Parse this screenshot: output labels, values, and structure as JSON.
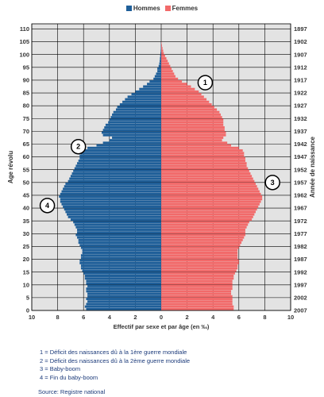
{
  "chart_data": {
    "type": "bar",
    "orientation": "horizontal-pyramid",
    "legend": {
      "position": "top-center",
      "entries": [
        "Hommes",
        "Femmes"
      ]
    },
    "colors": {
      "hommes": "#1f5f99",
      "femmes": "#f26a6a",
      "plot_bg": "#e3e3e3",
      "grid": "#000000"
    },
    "xlabel": "Effectif par sexe et par âge (en ‰)",
    "ylabel_left": "Age révolu",
    "ylabel_right": "Année de naissance",
    "xlim": [
      -10,
      10
    ],
    "x_ticks": [
      "10",
      "8",
      "6",
      "4",
      "2",
      "0",
      "2",
      "4",
      "6",
      "8",
      "10"
    ],
    "ylim": [
      0,
      112
    ],
    "age_ticks": [
      "0",
      "5",
      "10",
      "15",
      "20",
      "25",
      "30",
      "35",
      "40",
      "45",
      "50",
      "55",
      "60",
      "65",
      "70",
      "75",
      "80",
      "85",
      "90",
      "95",
      "100",
      "105",
      "110"
    ],
    "year_ticks": [
      "2007",
      "2002",
      "1997",
      "1992",
      "1987",
      "1982",
      "1977",
      "1972",
      "1967",
      "1962",
      "1957",
      "1952",
      "1947",
      "1942",
      "1937",
      "1932",
      "1927",
      "1922",
      "1917",
      "1912",
      "1907",
      "1902",
      "1897"
    ],
    "grid": true,
    "ages": [
      0,
      1,
      2,
      3,
      4,
      5,
      6,
      7,
      8,
      9,
      10,
      11,
      12,
      13,
      14,
      15,
      16,
      17,
      18,
      19,
      20,
      21,
      22,
      23,
      24,
      25,
      26,
      27,
      28,
      29,
      30,
      31,
      32,
      33,
      34,
      35,
      36,
      37,
      38,
      39,
      40,
      41,
      42,
      43,
      44,
      45,
      46,
      47,
      48,
      49,
      50,
      51,
      52,
      53,
      54,
      55,
      56,
      57,
      58,
      59,
      60,
      61,
      62,
      63,
      64,
      65,
      66,
      67,
      68,
      69,
      70,
      71,
      72,
      73,
      74,
      75,
      76,
      77,
      78,
      79,
      80,
      81,
      82,
      83,
      84,
      85,
      86,
      87,
      88,
      89,
      90,
      91,
      92,
      93,
      94,
      95,
      96,
      97,
      98,
      99,
      100,
      101,
      102,
      103,
      104,
      105
    ],
    "series": [
      {
        "name": "Hommes",
        "values": [
          5.8,
          5.9,
          5.8,
          5.7,
          5.8,
          5.7,
          5.7,
          5.8,
          5.8,
          5.7,
          5.8,
          5.8,
          5.9,
          5.9,
          6.0,
          6.1,
          6.2,
          6.2,
          6.3,
          6.3,
          6.2,
          6.2,
          6.1,
          6.1,
          6.2,
          6.3,
          6.4,
          6.4,
          6.5,
          6.6,
          6.5,
          6.5,
          6.6,
          6.7,
          6.8,
          7.0,
          7.2,
          7.3,
          7.4,
          7.5,
          7.6,
          7.7,
          7.8,
          7.8,
          7.9,
          7.8,
          7.7,
          7.6,
          7.5,
          7.4,
          7.2,
          7.1,
          7.0,
          6.9,
          6.8,
          6.7,
          6.6,
          6.5,
          6.4,
          6.3,
          6.3,
          6.2,
          6.2,
          5.7,
          5.0,
          4.5,
          4.0,
          3.8,
          4.5,
          4.6,
          4.5,
          4.4,
          4.3,
          4.1,
          4.0,
          3.9,
          3.8,
          3.7,
          3.5,
          3.4,
          3.2,
          3.0,
          2.8,
          2.6,
          2.3,
          2.0,
          1.7,
          1.4,
          1.1,
          0.9,
          0.6,
          0.5,
          0.4,
          0.3,
          0.3,
          0.2,
          0.15,
          0.12,
          0.1,
          0.08,
          0.06,
          0.04,
          0.03,
          0.02,
          0.01,
          0.0
        ]
      },
      {
        "name": "Femmes",
        "values": [
          5.6,
          5.6,
          5.5,
          5.5,
          5.5,
          5.5,
          5.4,
          5.4,
          5.5,
          5.5,
          5.5,
          5.5,
          5.6,
          5.6,
          5.7,
          5.8,
          5.9,
          5.9,
          6.0,
          6.0,
          5.9,
          5.9,
          5.9,
          5.9,
          6.0,
          6.1,
          6.2,
          6.3,
          6.4,
          6.5,
          6.5,
          6.5,
          6.6,
          6.7,
          6.8,
          7.0,
          7.1,
          7.2,
          7.3,
          7.4,
          7.5,
          7.6,
          7.7,
          7.8,
          7.8,
          7.7,
          7.6,
          7.5,
          7.4,
          7.3,
          7.2,
          7.1,
          7.0,
          6.9,
          6.8,
          6.7,
          6.6,
          6.6,
          6.5,
          6.5,
          6.4,
          6.4,
          6.3,
          6.0,
          5.4,
          5.1,
          4.7,
          4.8,
          5.0,
          5.0,
          4.9,
          4.9,
          4.8,
          4.8,
          4.8,
          4.7,
          4.6,
          4.5,
          4.3,
          4.1,
          3.9,
          3.7,
          3.5,
          3.3,
          3.1,
          2.9,
          2.6,
          2.3,
          2.0,
          1.6,
          1.3,
          1.1,
          1.0,
          0.9,
          0.8,
          0.7,
          0.6,
          0.5,
          0.4,
          0.3,
          0.2,
          0.15,
          0.1,
          0.06,
          0.03,
          0.0
        ]
      }
    ],
    "annotations": [
      {
        "label": "1",
        "age": 89,
        "x": 3.4
      },
      {
        "label": "2",
        "age": 64,
        "x": -6.4
      },
      {
        "label": "3",
        "age": 50,
        "x": 8.6
      },
      {
        "label": "4",
        "age": 41,
        "x": -8.8
      }
    ]
  },
  "notes": [
    "1 = Déficit des naissances dû à la 1ère guerre mondiale",
    "2 = Déficit des naissances dû à la 2ème guerre mondiale",
    "3 = Baby-boom",
    "4 = Fin du baby-boom"
  ],
  "source": "Source:  Registre national"
}
